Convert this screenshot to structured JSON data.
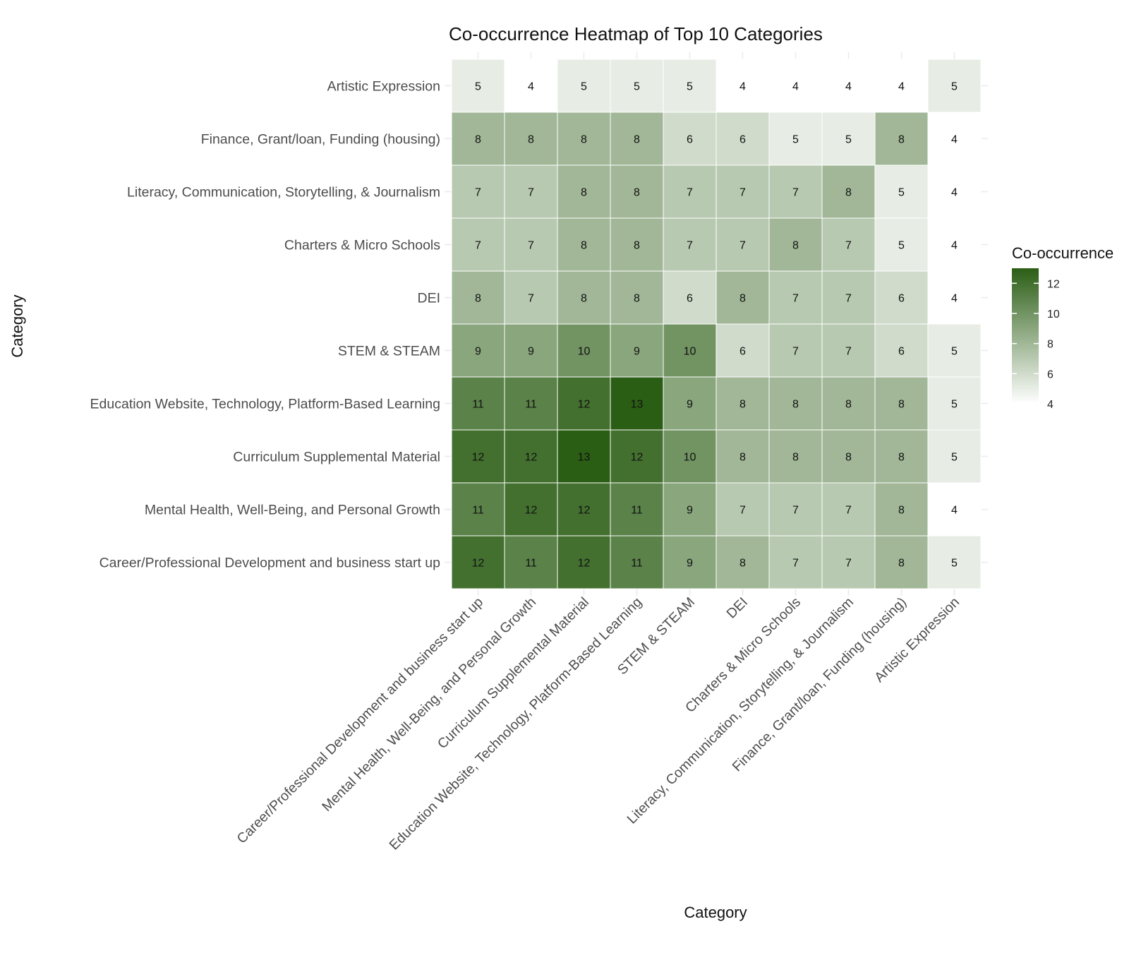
{
  "chart_data": {
    "type": "heatmap",
    "title": "Co-occurrence Heatmap of Top 10 Categories",
    "xlabel": "Category",
    "ylabel": "Category",
    "x_categories": [
      "Career/Professional Development and business start up",
      "Mental Health, Well-Being, and Personal Growth",
      "Curriculum Supplemental Material",
      "Education Website, Technology, Platform-Based Learning",
      "STEM & STEAM",
      "DEI",
      "Charters & Micro Schools",
      "Literacy, Communication, Storytelling, & Journalism",
      "Finance, Grant/loan, Funding (housing)",
      "Artistic Expression"
    ],
    "y_categories": [
      "Artistic Expression",
      "Finance, Grant/loan, Funding (housing)",
      "Literacy, Communication, Storytelling, & Journalism",
      "Charters & Micro Schools",
      "DEI",
      "STEM & STEAM",
      "Education Website, Technology, Platform-Based Learning",
      "Curriculum Supplemental Material",
      "Mental Health, Well-Being, and Personal Growth",
      "Career/Professional Development and business start up"
    ],
    "values": [
      [
        5,
        4,
        5,
        5,
        5,
        4,
        4,
        4,
        4,
        5
      ],
      [
        8,
        8,
        8,
        8,
        6,
        6,
        5,
        5,
        8,
        4
      ],
      [
        7,
        7,
        8,
        8,
        7,
        7,
        7,
        8,
        5,
        4
      ],
      [
        7,
        7,
        8,
        8,
        7,
        7,
        8,
        7,
        5,
        4
      ],
      [
        8,
        7,
        8,
        8,
        6,
        8,
        7,
        7,
        6,
        4
      ],
      [
        9,
        9,
        10,
        9,
        10,
        6,
        7,
        7,
        6,
        5
      ],
      [
        11,
        11,
        12,
        13,
        9,
        8,
        8,
        8,
        8,
        5
      ],
      [
        12,
        12,
        13,
        12,
        10,
        8,
        8,
        8,
        8,
        5
      ],
      [
        11,
        12,
        12,
        11,
        9,
        7,
        7,
        7,
        8,
        4
      ],
      [
        12,
        11,
        12,
        11,
        9,
        8,
        7,
        7,
        8,
        5
      ]
    ],
    "color_scale": {
      "low": "#ffffff",
      "high": "#2b5e15",
      "min": 4,
      "max": 13
    },
    "legend": {
      "title": "Co-occurrence",
      "ticks": [
        12,
        10,
        8,
        6,
        4
      ],
      "position": "right"
    },
    "grid": true
  }
}
